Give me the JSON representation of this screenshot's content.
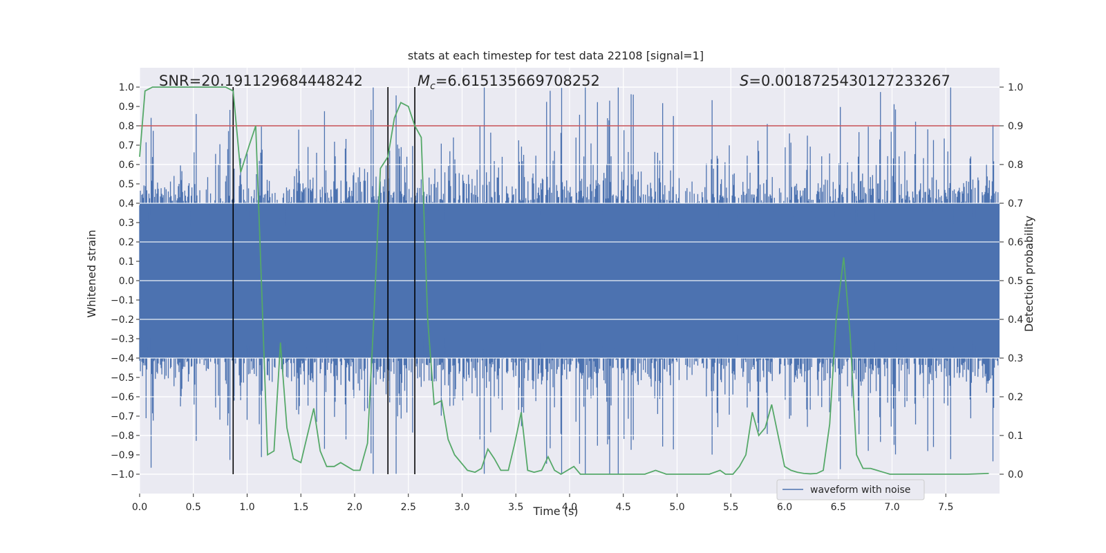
{
  "chart_data": {
    "type": "line",
    "title": "stats at each timestep for test data 22108 [signal=1]",
    "xlabel": "Time (s)",
    "ylabel": "Whitened strain",
    "y2label": "Detection probability",
    "xlim": [
      0.0,
      8.0
    ],
    "ylim": [
      -1.1,
      1.1
    ],
    "y2lim": [
      -0.05,
      1.05
    ],
    "xticks": [
      0.0,
      0.5,
      1.0,
      1.5,
      2.0,
      2.5,
      3.0,
      3.5,
      4.0,
      4.5,
      5.0,
      5.5,
      6.0,
      6.5,
      7.0,
      7.5
    ],
    "xtick_labels": [
      "0.0",
      "0.5",
      "1.0",
      "1.5",
      "2.0",
      "2.5",
      "3.0",
      "3.5",
      "4.0",
      "4.5",
      "5.0",
      "5.5",
      "6.0",
      "6.5",
      "7.0",
      "7.5"
    ],
    "yticks": [
      1.0,
      0.9,
      0.8,
      0.7,
      0.6,
      0.5,
      0.4,
      0.3,
      0.2,
      0.1,
      0.0,
      -0.1,
      -0.2,
      -0.3,
      -0.4,
      -0.5,
      -0.6,
      -0.7,
      -0.8,
      -0.9,
      -1.0
    ],
    "ytick_labels": [
      "1.0",
      "0.9",
      "0.8",
      "0.7",
      "0.6",
      "0.5",
      "0.4",
      "0.3",
      "0.2",
      "0.1",
      "0.0",
      "−0.1",
      "−0.2",
      "−0.3",
      "−0.4",
      "−0.5",
      "−0.6",
      "−0.7",
      "−0.8",
      "−0.9",
      "−1.0"
    ],
    "y2ticks": [
      1.0,
      0.9,
      0.8,
      0.7,
      0.6,
      0.5,
      0.4,
      0.3,
      0.2,
      0.1,
      0.0
    ],
    "y2tick_labels": [
      "1.0",
      "0.9",
      "0.8",
      "0.7",
      "0.6",
      "0.5",
      "0.4",
      "0.3",
      "0.2",
      "0.1",
      "0.0"
    ],
    "grid": true,
    "annotations": {
      "snr": "SNR=20.191129684448242",
      "mc_symbol": "M",
      "mc_sub": "c",
      "mc_value": "=6.615135669708252",
      "s_symbol": "S",
      "s_value": "=0.0018725430127233267"
    },
    "legend": {
      "position": "lower-right",
      "entries": [
        "waveform with noise"
      ]
    },
    "threshold_y2": 0.9,
    "vertical_lines_x": [
      0.87,
      2.31,
      2.56
    ],
    "vertical_line_range": [
      -1.0,
      1.0
    ],
    "series": [
      {
        "name": "waveform with noise",
        "color": "#4c72b0",
        "typical_amplitude": 0.4,
        "peak_amplitude": 1.0,
        "samples": 1200,
        "description_of_extent": "noise band spanning roughly ±0.4 with spikes up to ±1.0"
      },
      {
        "name": "detection probability",
        "color": "#55a868",
        "axis": "y2",
        "x": [
          0.0,
          0.05,
          0.12,
          0.2,
          0.3,
          0.4,
          0.5,
          0.6,
          0.7,
          0.8,
          0.87,
          0.94,
          1.02,
          1.08,
          1.13,
          1.19,
          1.25,
          1.31,
          1.37,
          1.43,
          1.5,
          1.56,
          1.62,
          1.68,
          1.74,
          1.81,
          1.87,
          1.93,
          1.99,
          2.05,
          2.12,
          2.18,
          2.24,
          2.31,
          2.37,
          2.43,
          2.5,
          2.56,
          2.62,
          2.68,
          2.74,
          2.81,
          2.87,
          2.93,
          2.99,
          3.05,
          3.12,
          3.18,
          3.24,
          3.3,
          3.36,
          3.43,
          3.49,
          3.55,
          3.61,
          3.67,
          3.74,
          3.8,
          3.86,
          3.92,
          3.98,
          4.04,
          4.1,
          4.2,
          4.3,
          4.4,
          4.5,
          4.6,
          4.7,
          4.8,
          4.9,
          5.0,
          5.1,
          5.2,
          5.3,
          5.4,
          5.45,
          5.52,
          5.58,
          5.64,
          5.7,
          5.76,
          5.82,
          5.88,
          5.94,
          6.0,
          6.06,
          6.12,
          6.18,
          6.24,
          6.3,
          6.36,
          6.42,
          6.48,
          6.55,
          6.61,
          6.67,
          6.73,
          6.8,
          6.86,
          6.92,
          6.98,
          7.04,
          7.1,
          7.3,
          7.5,
          7.7,
          7.9
        ],
        "y": [
          0.82,
          0.99,
          1.0,
          1.0,
          1.0,
          1.0,
          1.0,
          1.0,
          1.0,
          1.0,
          0.99,
          0.78,
          0.85,
          0.9,
          0.52,
          0.05,
          0.06,
          0.34,
          0.12,
          0.04,
          0.03,
          0.1,
          0.17,
          0.06,
          0.02,
          0.02,
          0.03,
          0.02,
          0.01,
          0.01,
          0.08,
          0.41,
          0.79,
          0.82,
          0.92,
          0.96,
          0.95,
          0.9,
          0.87,
          0.4,
          0.18,
          0.19,
          0.09,
          0.05,
          0.03,
          0.01,
          0.005,
          0.015,
          0.065,
          0.04,
          0.01,
          0.01,
          0.08,
          0.16,
          0.01,
          0.005,
          0.01,
          0.045,
          0.01,
          0.0,
          0.01,
          0.02,
          0.0,
          0.0,
          0.0,
          0.0,
          0.0,
          0.0,
          0.0,
          0.01,
          0.0,
          0.0,
          0.0,
          0.0,
          0.0,
          0.01,
          0.0,
          0.0,
          0.02,
          0.05,
          0.16,
          0.1,
          0.12,
          0.18,
          0.1,
          0.02,
          0.01,
          0.005,
          0.002,
          0.001,
          0.002,
          0.01,
          0.13,
          0.4,
          0.56,
          0.36,
          0.05,
          0.015,
          0.015,
          0.01,
          0.005,
          0.0,
          0.0,
          0.0,
          0.0,
          0.0,
          0.0,
          0.002
        ]
      }
    ]
  }
}
